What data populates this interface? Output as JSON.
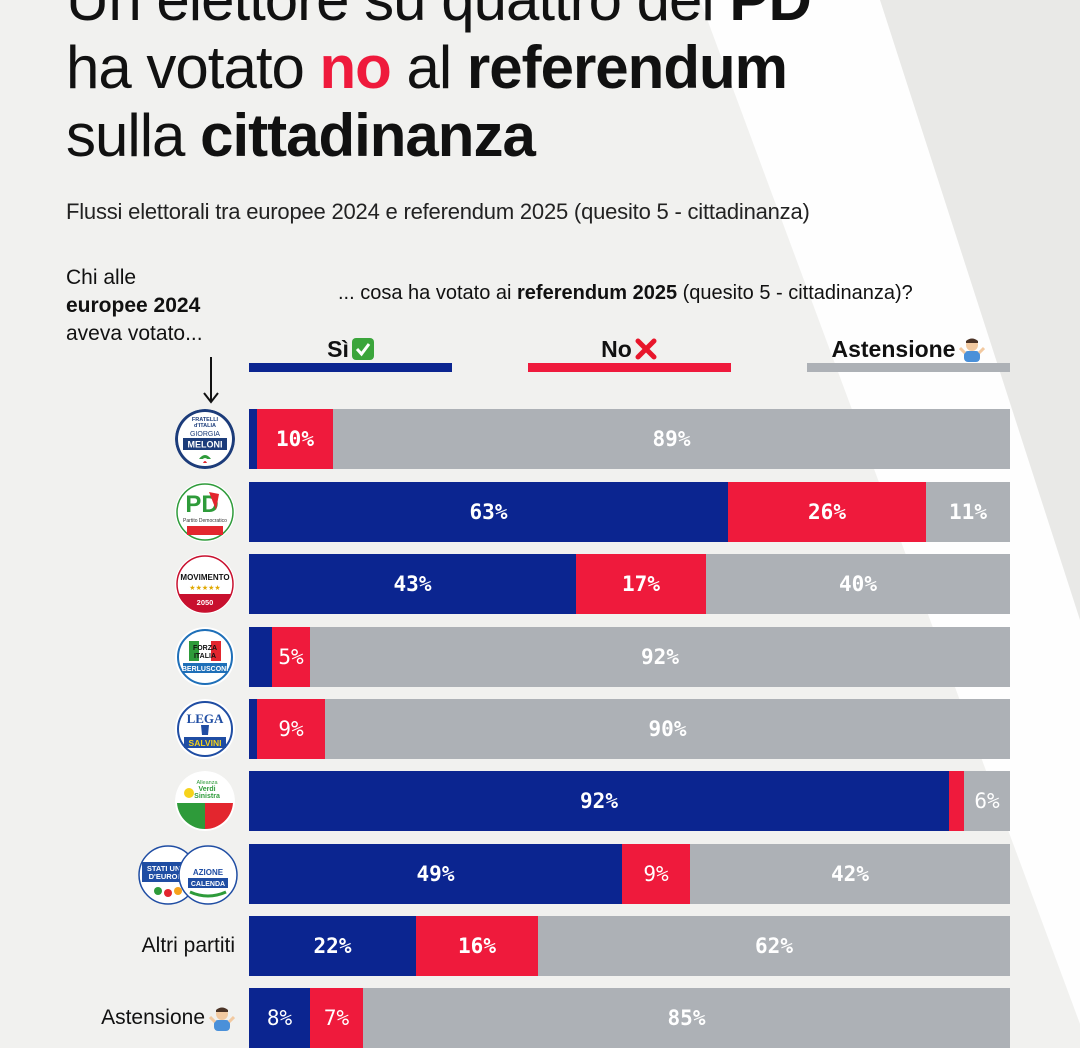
{
  "headline": {
    "line1": {
      "pre": "Un elettore su quattro del ",
      "bold": "PD"
    },
    "line2": {
      "pre": "ha votato ",
      "red": "no",
      "mid": " al ",
      "bold": "referendum"
    },
    "line3": {
      "pre": "sulla ",
      "bold": "cittadinanza"
    }
  },
  "subtitle": "Flussi elettorali tra europee 2024 e referendum 2025 (quesito 5 - cittadinanza)",
  "left_hint": {
    "line1": "Chi alle",
    "line2": "europee 2024",
    "line3": "aveva votato..."
  },
  "question": {
    "pre": "... cosa ha votato ai ",
    "bold": "referendum 2025",
    "post": " (quesito 5 - cittadinanza)?"
  },
  "colors": {
    "si": "#0b2590",
    "no": "#ef1a3c",
    "astensione": "#adb1b6",
    "background": "#f1f1ef"
  },
  "chart_data": {
    "type": "bar",
    "orientation": "horizontal",
    "stacked": true,
    "title": "Un elettore su quattro del PD ha votato no al referendum sulla cittadinanza",
    "subtitle": "Flussi elettorali tra europee 2024 e referendum 2025 (quesito 5 - cittadinanza)",
    "legend_position": "top",
    "series": [
      {
        "name": "Sì",
        "icon": "check-icon",
        "color": "#0b2590"
      },
      {
        "name": "No",
        "icon": "cross-icon",
        "color": "#ef1a3c"
      },
      {
        "name": "Astensione",
        "icon": "shrug-icon",
        "color": "#adb1b6"
      }
    ],
    "xlim": [
      0,
      100
    ],
    "unit": "%",
    "rows": [
      {
        "key": "fdi",
        "logo": "fratelli-d-italia-logo",
        "logo_text": {
          "a": "FRATELLI",
          "b": "d'ITALIA",
          "c": "GIORGIA",
          "d": "MELONI"
        },
        "values": [
          1,
          10,
          89
        ],
        "labels": [
          "",
          "10%",
          "89%"
        ]
      },
      {
        "key": "pd",
        "logo": "partito-democratico-logo",
        "logo_text": {
          "a": "PD",
          "b": "Partito Democratico"
        },
        "values": [
          63,
          26,
          11
        ],
        "labels": [
          "63%",
          "26%",
          "11%"
        ]
      },
      {
        "key": "m5s",
        "logo": "movimento-5-stelle-logo",
        "logo_text": {
          "a": "MOVIMENTO",
          "b": "★★★★★",
          "c": "2050"
        },
        "values": [
          43,
          17,
          40
        ],
        "labels": [
          "43%",
          "17%",
          "40%"
        ]
      },
      {
        "key": "fi",
        "logo": "forza-italia-logo",
        "logo_text": {
          "a": "FORZA",
          "b": "ITALIA",
          "c": "BERLUSCONI"
        },
        "values": [
          3,
          5,
          92
        ],
        "labels": [
          "",
          "5%",
          "92%"
        ]
      },
      {
        "key": "lega",
        "logo": "lega-logo",
        "logo_text": {
          "a": "LEGA",
          "b": "SALVINI"
        },
        "values": [
          1,
          9,
          90
        ],
        "labels": [
          "",
          "9%",
          "90%"
        ]
      },
      {
        "key": "avs",
        "logo": "alleanza-verdi-sinistra-logo",
        "logo_text": {
          "a": "Alleanza",
          "b": "Verdi",
          "c": "Sinistra"
        },
        "values": [
          92,
          2,
          6
        ],
        "labels": [
          "92%",
          "",
          "6%"
        ]
      },
      {
        "key": "centro",
        "logo": "stati-uniti-europa-azione-logo",
        "logo_text": {
          "a": "STATI UNITI",
          "b": "D'EUROPA",
          "c": "AZIONE",
          "d": "CALENDA"
        },
        "values": [
          49,
          9,
          42
        ],
        "labels": [
          "49%",
          "9%",
          "42%"
        ]
      },
      {
        "key": "altri",
        "text": "Altri partiti",
        "values": [
          22,
          16,
          62
        ],
        "labels": [
          "22%",
          "16%",
          "62%"
        ]
      },
      {
        "key": "astensione",
        "text": "Astensione",
        "values": [
          8,
          7,
          85
        ],
        "labels": [
          "8%",
          "7%",
          "85%"
        ]
      }
    ]
  }
}
